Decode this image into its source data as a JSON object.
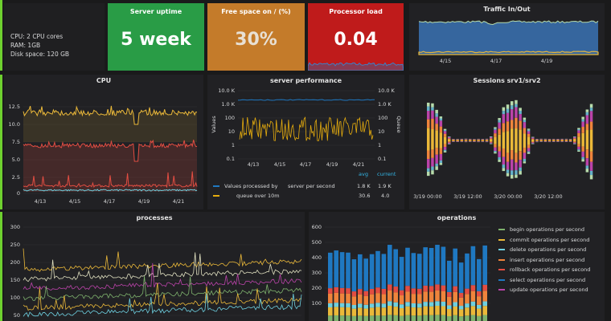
{
  "info": {
    "lines": [
      "CPU: 2 CPU cores",
      "RAM: 1GB",
      "Disk space: 120 GB"
    ]
  },
  "stats": [
    {
      "title": "Server uptime",
      "value": "5 week",
      "color": "#299c46"
    },
    {
      "title": "Free space on / (%)",
      "value": "30%",
      "color": "#c47b2a"
    },
    {
      "title": "Processor load",
      "value": "0.04",
      "color": "#bf1b1b"
    }
  ],
  "traffic": {
    "title": "Traffic In/Out",
    "xticks": [
      "4/15",
      "4/17",
      "4/19"
    ]
  },
  "cpu": {
    "title": "CPU",
    "yticks": [
      "12.5",
      "10.0",
      "7.5",
      "5.0",
      "2.5",
      "0"
    ],
    "xticks": [
      "4/13",
      "4/15",
      "4/17",
      "4/19",
      "4/21"
    ]
  },
  "perf": {
    "title": "server performance",
    "yleft": [
      "10.0 K",
      "1.0 K",
      "100",
      "10",
      "1",
      "0.1"
    ],
    "yright": [
      "10.0 K",
      "1.0 K",
      "100",
      "10",
      "1",
      "0.1"
    ],
    "ylabel_left": "Values",
    "ylabel_right": "Queue",
    "xticks": [
      "4/13",
      "4/15",
      "4/17",
      "4/19",
      "4/21"
    ],
    "legend_head": [
      "avg",
      "current"
    ],
    "legend": [
      {
        "name": "Values processed by",
        "name2": "server per second",
        "avg": "1.8 K",
        "current": "1.9 K",
        "color": "#1f78c1"
      },
      {
        "name": "queue over 10m",
        "name2": "",
        "avg": "30.6",
        "current": "4.0",
        "color": "#e5ac0e"
      }
    ]
  },
  "sessions": {
    "title": "Sessions srv1/srv2",
    "xticks": [
      "3/19 00:00",
      "3/19 12:00",
      "3/20 00:00",
      "3/20 12:00"
    ]
  },
  "processes": {
    "title": "processes",
    "yticks": [
      "300",
      "250",
      "200",
      "150",
      "100",
      "50"
    ]
  },
  "operations": {
    "title": "operations",
    "yticks": [
      "600",
      "500",
      "400",
      "300",
      "200",
      "100"
    ],
    "legend": [
      {
        "label": "begin operations per second",
        "color": "#7eb26d"
      },
      {
        "label": "commit operations per second",
        "color": "#eab839"
      },
      {
        "label": "delete operations per second",
        "color": "#6ed0e0"
      },
      {
        "label": "insert operations per second",
        "color": "#ef843c"
      },
      {
        "label": "rollback operations per second",
        "color": "#e24d42"
      },
      {
        "label": "select operations per second",
        "color": "#1f78c1"
      },
      {
        "label": "update operations per second",
        "color": "#ba43a9"
      }
    ]
  }
}
